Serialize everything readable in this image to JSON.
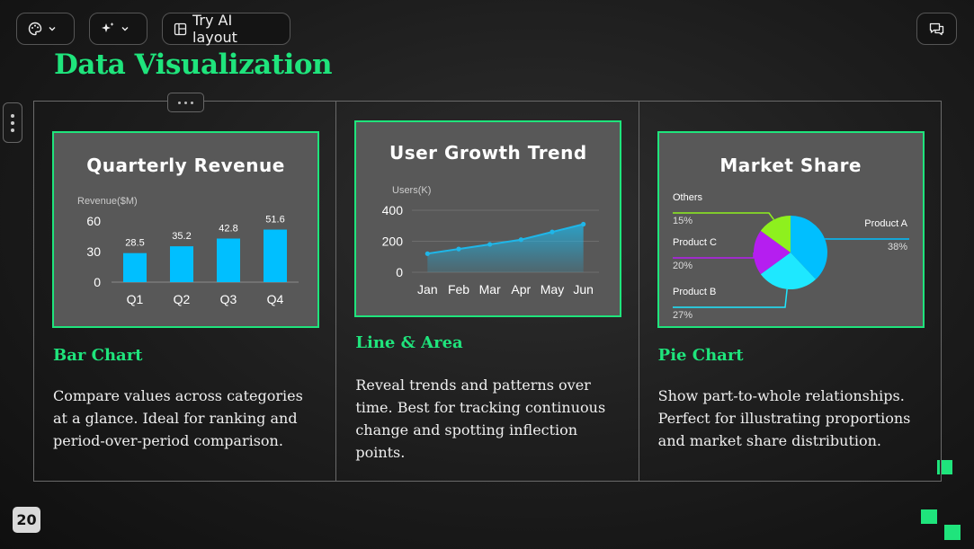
{
  "toolbar": {
    "try_ai_layout_label": "Try AI layout"
  },
  "slide": {
    "title": "Data Visualization",
    "page_number": "20",
    "accent_color": "#1fe47c"
  },
  "cards": [
    {
      "chart_title": "Quarterly Revenue",
      "type_label": "Bar Chart",
      "description": "Compare values across categories at a glance. Ideal for ranking and period-over-period comparison."
    },
    {
      "chart_title": "User Growth Trend",
      "type_label": "Line & Area",
      "description": "Reveal trends and patterns over time. Best for tracking continuous change and spotting inflection points."
    },
    {
      "chart_title": "Market Share",
      "type_label": "Pie Chart",
      "description": "Show part-to-whole relationships. Perfect for illustrating proportions and market share distribution."
    }
  ],
  "chart_data": [
    {
      "type": "bar",
      "title": "Quarterly Revenue",
      "ylabel": "Revenue($M)",
      "categories": [
        "Q1",
        "Q2",
        "Q3",
        "Q4"
      ],
      "values": [
        28.5,
        35.2,
        42.8,
        51.6
      ],
      "yticks": [
        "0",
        "30",
        "60"
      ],
      "ylim": [
        0,
        60
      ],
      "color": "#00bfff"
    },
    {
      "type": "area",
      "title": "User Growth Trend",
      "ylabel": "Users(K)",
      "categories": [
        "Jan",
        "Feb",
        "Mar",
        "Apr",
        "May",
        "Jun"
      ],
      "values": [
        120,
        150,
        180,
        210,
        260,
        310
      ],
      "yticks": [
        "0",
        "200",
        "400"
      ],
      "ylim": [
        0,
        400
      ],
      "color": "#1fb6e8"
    },
    {
      "type": "pie",
      "title": "Market Share",
      "slices": [
        {
          "name": "Product A",
          "value": 38,
          "label": "38%",
          "color": "#00bfff"
        },
        {
          "name": "Product B",
          "value": 27,
          "label": "27%",
          "color": "#1ee8ff"
        },
        {
          "name": "Product C",
          "value": 20,
          "label": "20%",
          "color": "#b51ef0"
        },
        {
          "name": "Others",
          "value": 15,
          "label": "15%",
          "color": "#8ef01e"
        }
      ]
    }
  ]
}
